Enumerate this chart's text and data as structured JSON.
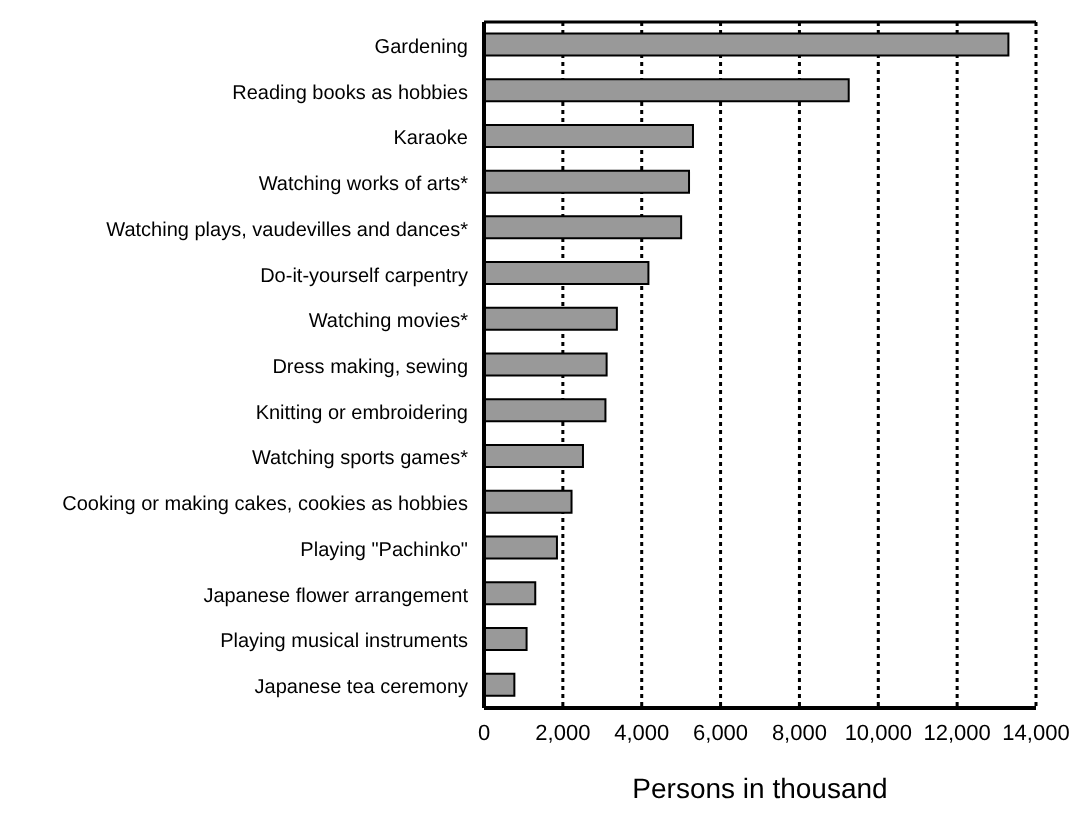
{
  "chart_data": {
    "type": "bar",
    "orientation": "horizontal",
    "xlabel": "Persons in thousand",
    "categories": [
      "Gardening",
      "Reading books as hobbies",
      "Karaoke",
      "Watching works of arts*",
      "Watching plays, vaudevilles and dances*",
      "Do-it-yourself carpentry",
      "Watching movies*",
      "Dress making, sewing",
      "Knitting or embroidering",
      "Watching sports games*",
      "Cooking or making cakes, cookies as hobbies",
      "Playing \"Pachinko\"",
      "Japanese flower arrangement",
      "Playing musical instruments",
      "Japanese tea ceremony"
    ],
    "values": [
      13300,
      9250,
      5300,
      5200,
      5000,
      4170,
      3370,
      3110,
      3080,
      2510,
      2220,
      1850,
      1300,
      1080,
      770
    ],
    "color": "#999999",
    "xlim": [
      0,
      14000
    ],
    "xticks": [
      0,
      {
        "value": 2000,
        "label": "2,000"
      },
      {
        "value": 4000,
        "label": "4,000"
      },
      {
        "value": 6000,
        "label": "6,000"
      },
      {
        "value": 8000,
        "label": "8,000"
      },
      {
        "value": 10000,
        "label": "10,000"
      },
      {
        "value": 12000,
        "label": "12,000"
      },
      {
        "value": 14000,
        "label": "14,000"
      }
    ],
    "grid": "x",
    "line_style": "dotted"
  }
}
